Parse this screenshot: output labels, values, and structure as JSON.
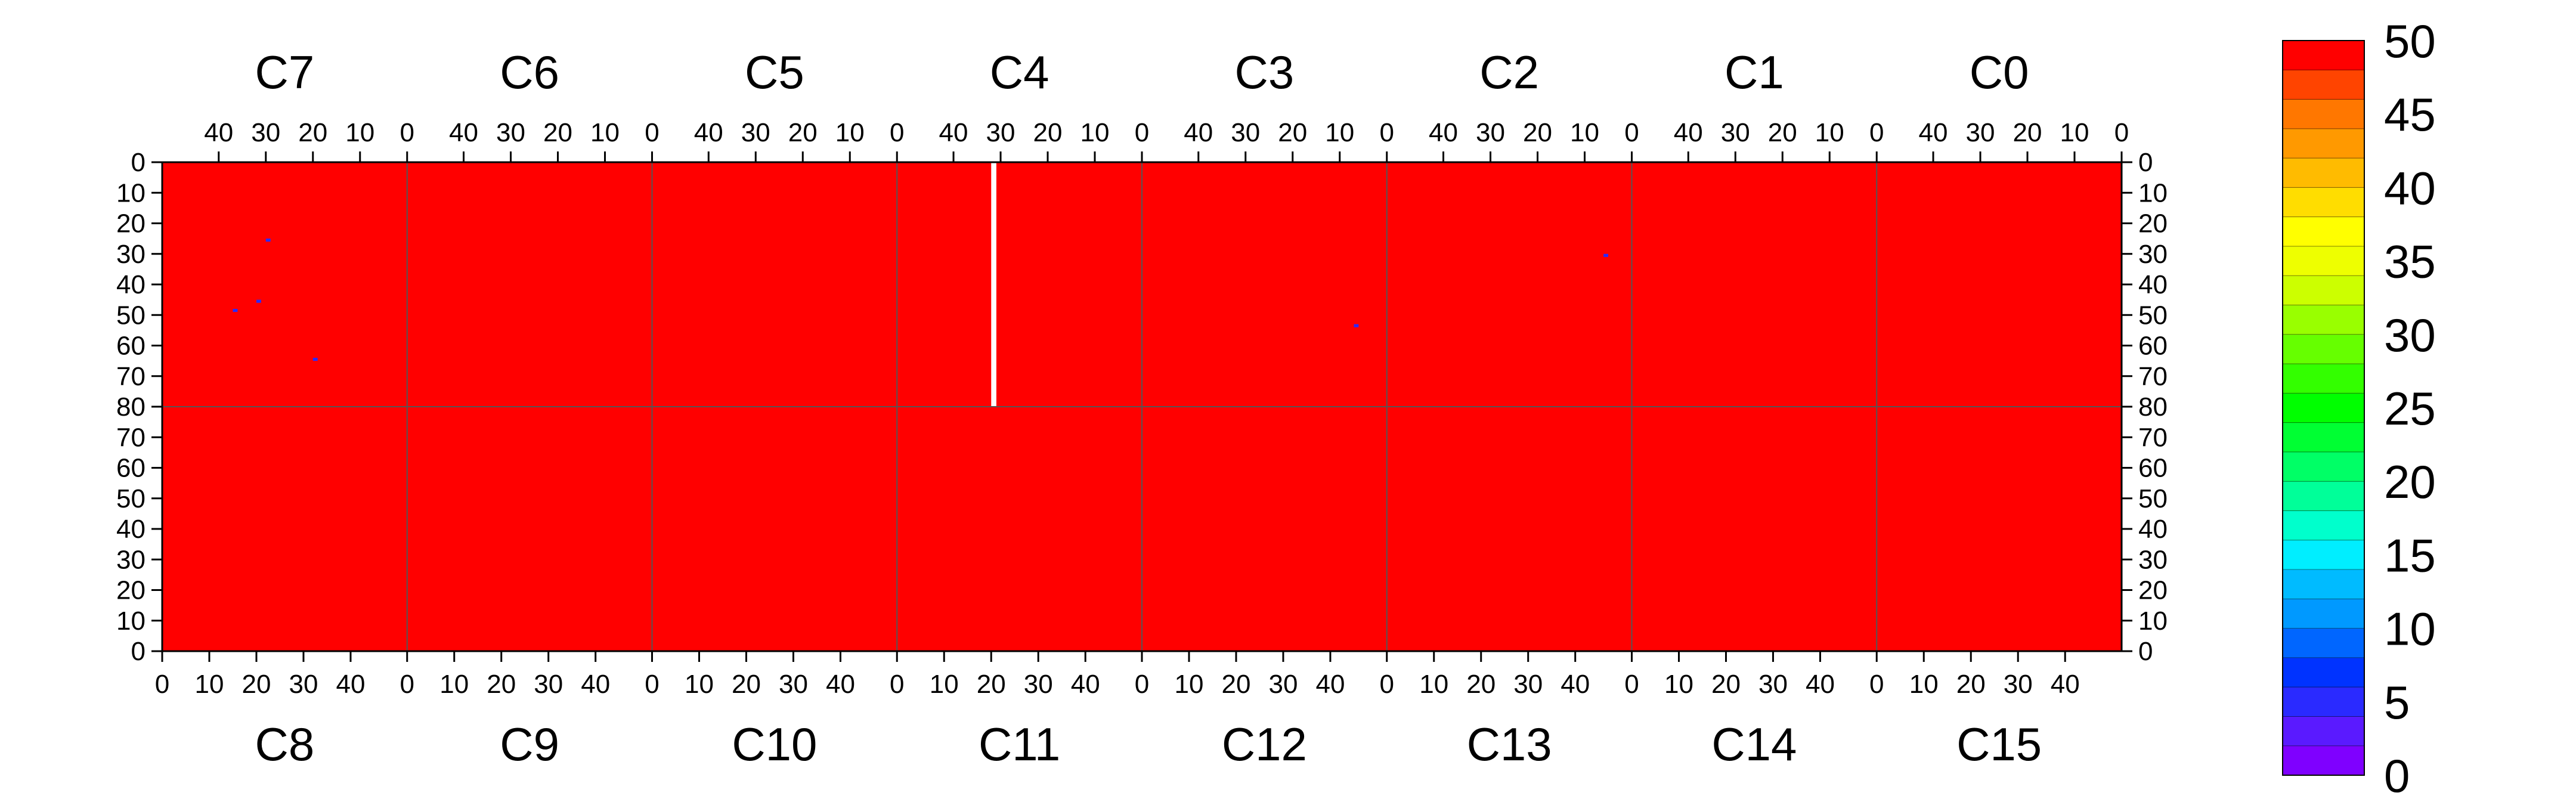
{
  "chart_data": {
    "type": "heatmap",
    "title": "",
    "z_range": [
      0,
      50
    ],
    "colorbar": {
      "ticks": [
        "0",
        "5",
        "10",
        "15",
        "20",
        "25",
        "30",
        "35",
        "40",
        "45",
        "50"
      ],
      "colors": [
        "#7f00ff",
        "#5a1aff",
        "#2a2aff",
        "#0033ff",
        "#0066ff",
        "#0099ff",
        "#00bbff",
        "#00eeff",
        "#00ffcc",
        "#00ff99",
        "#00ff66",
        "#00ff33",
        "#00ff00",
        "#33ff00",
        "#66ff00",
        "#99ff00",
        "#ccff00",
        "#eeff00",
        "#ffff00",
        "#ffdd00",
        "#ffbb00",
        "#ff9900",
        "#ff7700",
        "#ff4400",
        "#ff0000"
      ]
    },
    "top_chips": [
      "C7",
      "C6",
      "C5",
      "C4",
      "C3",
      "C2",
      "C1",
      "C0"
    ],
    "bottom_chips": [
      "C8",
      "C9",
      "C10",
      "C11",
      "C12",
      "C13",
      "C14",
      "C15"
    ],
    "top_col_ticks": [
      "40",
      "30",
      "20",
      "10",
      "0"
    ],
    "bottom_col_ticks": [
      "0",
      "10",
      "20",
      "30",
      "40"
    ],
    "top_row_ticks": [
      "0",
      "10",
      "20",
      "30",
      "40",
      "50",
      "60",
      "70",
      "80"
    ],
    "bottom_row_ticks": [
      "80",
      "70",
      "60",
      "50",
      "40",
      "30",
      "20",
      "10",
      "0"
    ],
    "chip_columns": 52,
    "chip_rows": 80,
    "background_value": 50,
    "highlights": [
      {
        "chip": "C4",
        "col": 31,
        "row_start": 0,
        "row_end": 80,
        "value": "masked"
      },
      {
        "chip": "C7",
        "col": 29,
        "row": 25,
        "value": 5
      },
      {
        "chip": "C7",
        "col": 36,
        "row": 48,
        "value": 5
      },
      {
        "chip": "C7",
        "col": 31,
        "row": 45,
        "value": 5
      },
      {
        "chip": "C7",
        "col": 19,
        "row": 64,
        "value": 5
      },
      {
        "chip": "C3",
        "col": 6,
        "row": 53,
        "value": 5
      },
      {
        "chip": "C2",
        "col": 5,
        "row": 30,
        "value": 5
      }
    ]
  }
}
